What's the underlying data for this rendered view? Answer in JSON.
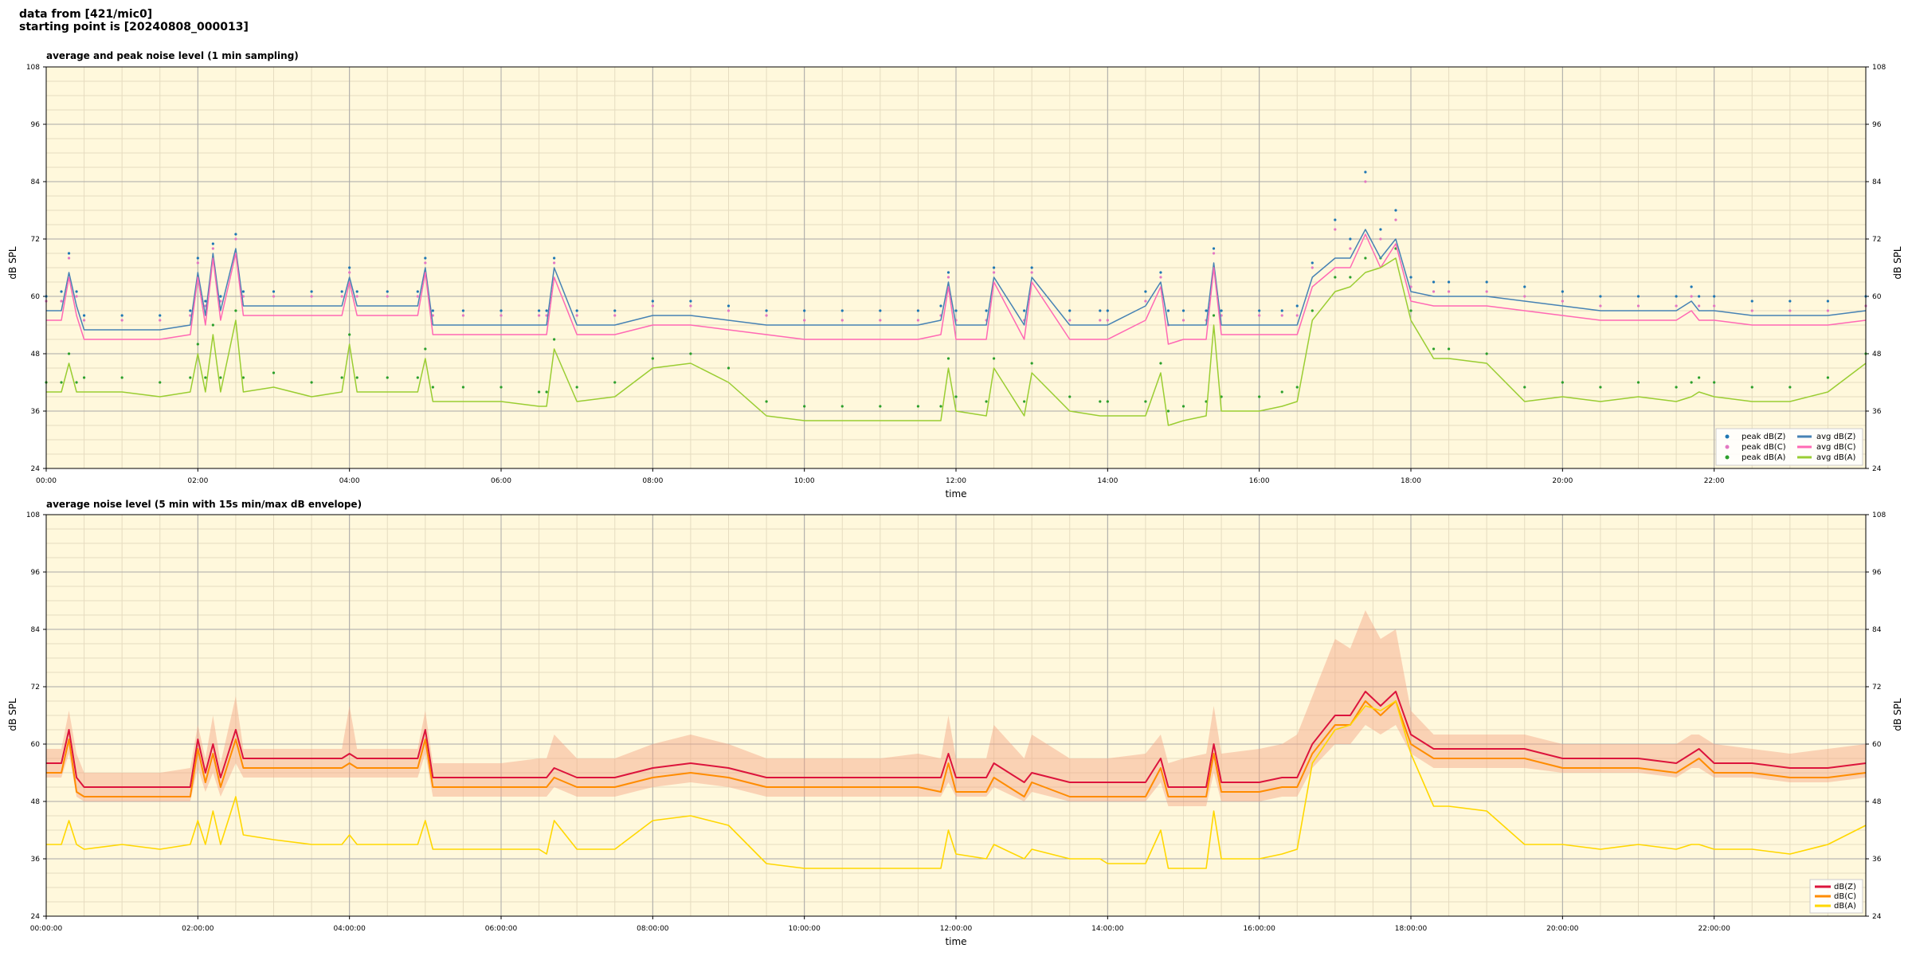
{
  "header": {
    "line1": "data from [421/mic0]",
    "line2": "starting point is [20240808_000013]"
  },
  "colors": {
    "plot_bg": "#fff8dc",
    "grid_major": "#a9a9a9",
    "grid_minor": "#e6dcc0",
    "peak_Z": "#1f77b4",
    "peak_C": "#e377c2",
    "peak_A": "#2ca02c",
    "avg_Z": "#4682b4",
    "avg_C": "#ff69b4",
    "avg_A": "#9acd32",
    "env_Z": "#dc143c",
    "env_C": "#ff8c00",
    "env_A": "#ffd700",
    "envelope_fill": "#f4a582"
  },
  "chart_data": [
    {
      "type": "line",
      "title": "average and peak noise level (1 min sampling)",
      "xlabel": "time",
      "ylabel": "dB SPL",
      "ylabel_right": "dB SPL",
      "ylim": [
        24,
        108
      ],
      "xlim_hours": [
        0,
        24
      ],
      "y_ticks": [
        "24",
        "36",
        "48",
        "60",
        "72",
        "84",
        "96",
        "108"
      ],
      "x_tick_labels": [
        "00:00",
        "02:00",
        "04:00",
        "06:00",
        "08:00",
        "10:00",
        "12:00",
        "14:00",
        "16:00",
        "18:00",
        "20:00",
        "22:00"
      ],
      "grid": true,
      "legend_position": "lower-right",
      "legend": [
        {
          "label": "peak dB(Z)",
          "marker": "dot",
          "color_key": "peak_Z"
        },
        {
          "label": "peak dB(C)",
          "marker": "dot",
          "color_key": "peak_C"
        },
        {
          "label": "peak dB(A)",
          "marker": "dot",
          "color_key": "peak_A"
        },
        {
          "label": "avg dB(Z)",
          "marker": "line",
          "color_key": "avg_Z"
        },
        {
          "label": "avg dB(C)",
          "marker": "line",
          "color_key": "avg_C"
        },
        {
          "label": "avg dB(A)",
          "marker": "line",
          "color_key": "avg_A"
        }
      ],
      "x_hours": [
        0,
        0.2,
        0.3,
        0.4,
        0.5,
        1,
        1.5,
        1.9,
        2.0,
        2.1,
        2.2,
        2.3,
        2.5,
        2.6,
        3,
        3.5,
        3.9,
        4.0,
        4.1,
        4.5,
        4.9,
        5.0,
        5.1,
        5.5,
        6,
        6.5,
        6.6,
        6.7,
        7,
        7.5,
        8,
        8.5,
        9,
        9.5,
        10,
        10.5,
        11,
        11.5,
        11.8,
        11.9,
        12,
        12.4,
        12.5,
        12.9,
        13,
        13.5,
        13.9,
        14,
        14.5,
        14.7,
        14.8,
        15,
        15.3,
        15.4,
        15.5,
        16,
        16.3,
        16.5,
        16.7,
        17,
        17.2,
        17.4,
        17.6,
        17.8,
        18,
        18.3,
        18.5,
        19,
        19.5,
        20,
        20.5,
        21,
        21.5,
        21.7,
        21.8,
        22,
        22.5,
        23,
        23.5,
        24
      ],
      "series": [
        {
          "name": "avg dB(Z)",
          "values": [
            57,
            57,
            65,
            58,
            53,
            53,
            53,
            54,
            65,
            56,
            69,
            57,
            70,
            58,
            58,
            58,
            58,
            64,
            58,
            58,
            58,
            66,
            54,
            54,
            54,
            54,
            54,
            66,
            54,
            54,
            56,
            56,
            55,
            54,
            54,
            54,
            54,
            54,
            55,
            63,
            54,
            54,
            64,
            54,
            64,
            54,
            54,
            54,
            58,
            63,
            54,
            54,
            54,
            67,
            54,
            54,
            54,
            54,
            64,
            68,
            68,
            74,
            68,
            72,
            61,
            60,
            60,
            60,
            59,
            58,
            57,
            57,
            57,
            59,
            57,
            57,
            56,
            56,
            56,
            57
          ]
        },
        {
          "name": "avg dB(C)",
          "values": [
            55,
            55,
            64,
            56,
            51,
            51,
            51,
            52,
            64,
            54,
            68,
            55,
            69,
            56,
            56,
            56,
            56,
            63,
            56,
            56,
            56,
            65,
            52,
            52,
            52,
            52,
            52,
            64,
            52,
            52,
            54,
            54,
            53,
            52,
            51,
            51,
            51,
            51,
            52,
            62,
            51,
            51,
            63,
            51,
            63,
            51,
            51,
            51,
            55,
            62,
            50,
            51,
            51,
            66,
            52,
            52,
            52,
            52,
            62,
            66,
            66,
            73,
            66,
            71,
            59,
            58,
            58,
            58,
            57,
            56,
            55,
            55,
            55,
            57,
            55,
            55,
            54,
            54,
            54,
            55
          ]
        },
        {
          "name": "avg dB(A)",
          "values": [
            40,
            40,
            46,
            40,
            40,
            40,
            39,
            40,
            48,
            40,
            52,
            40,
            55,
            40,
            41,
            39,
            40,
            50,
            40,
            40,
            40,
            47,
            38,
            38,
            38,
            37,
            37,
            49,
            38,
            39,
            45,
            46,
            42,
            35,
            34,
            34,
            34,
            34,
            34,
            45,
            36,
            35,
            45,
            35,
            44,
            36,
            35,
            35,
            35,
            44,
            33,
            34,
            35,
            54,
            36,
            36,
            37,
            38,
            55,
            61,
            62,
            65,
            66,
            68,
            55,
            47,
            47,
            46,
            38,
            39,
            38,
            39,
            38,
            39,
            40,
            39,
            38,
            38,
            40,
            46
          ]
        }
      ],
      "peak_scatter": [
        {
          "name": "peak dB(Z)",
          "values": [
            60,
            61,
            69,
            61,
            56,
            56,
            56,
            57,
            68,
            59,
            71,
            60,
            73,
            61,
            61,
            61,
            61,
            66,
            61,
            61,
            61,
            68,
            57,
            57,
            57,
            57,
            57,
            68,
            57,
            57,
            59,
            59,
            58,
            57,
            57,
            57,
            57,
            57,
            58,
            65,
            57,
            57,
            66,
            57,
            66,
            57,
            57,
            57,
            61,
            65,
            57,
            57,
            57,
            70,
            57,
            57,
            57,
            58,
            67,
            76,
            72,
            86,
            74,
            78,
            64,
            63,
            63,
            63,
            62,
            61,
            60,
            60,
            60,
            62,
            60,
            60,
            59,
            59,
            59,
            60
          ]
        },
        {
          "name": "peak dB(C)",
          "values": [
            59,
            59,
            68,
            60,
            55,
            55,
            55,
            56,
            67,
            58,
            70,
            59,
            72,
            60,
            60,
            60,
            60,
            65,
            60,
            60,
            60,
            67,
            56,
            56,
            56,
            56,
            56,
            67,
            56,
            56,
            58,
            58,
            57,
            56,
            55,
            55,
            55,
            55,
            56,
            64,
            55,
            55,
            65,
            55,
            65,
            55,
            55,
            55,
            59,
            64,
            54,
            55,
            55,
            69,
            56,
            56,
            56,
            56,
            66,
            74,
            70,
            84,
            72,
            76,
            62,
            61,
            61,
            61,
            60,
            59,
            58,
            58,
            58,
            60,
            58,
            58,
            57,
            57,
            57,
            58
          ]
        },
        {
          "name": "peak dB(A)",
          "values": [
            42,
            42,
            48,
            42,
            43,
            43,
            42,
            43,
            50,
            43,
            54,
            43,
            57,
            43,
            44,
            42,
            43,
            52,
            43,
            43,
            43,
            49,
            41,
            41,
            41,
            40,
            40,
            51,
            41,
            42,
            47,
            48,
            45,
            38,
            37,
            37,
            37,
            37,
            37,
            47,
            39,
            38,
            47,
            38,
            46,
            39,
            38,
            38,
            38,
            46,
            36,
            37,
            38,
            56,
            39,
            39,
            40,
            41,
            57,
            64,
            64,
            68,
            68,
            70,
            57,
            49,
            49,
            48,
            41,
            42,
            41,
            42,
            41,
            42,
            43,
            42,
            41,
            41,
            43,
            48
          ]
        }
      ]
    },
    {
      "type": "area",
      "title": "average noise level (5 min with 15s min/max dB envelope)",
      "xlabel": "time",
      "ylabel": "dB SPL",
      "ylabel_right": "dB SPL",
      "ylim": [
        24,
        108
      ],
      "xlim_hours": [
        0,
        24
      ],
      "y_ticks": [
        "24",
        "36",
        "48",
        "60",
        "72",
        "84",
        "96",
        "108"
      ],
      "x_tick_labels": [
        "00:00:00",
        "02:00:00",
        "04:00:00",
        "06:00:00",
        "08:00:00",
        "10:00:00",
        "12:00:00",
        "14:00:00",
        "16:00:00",
        "18:00:00",
        "20:00:00",
        "22:00:00"
      ],
      "grid": true,
      "legend_position": "lower-right",
      "legend": [
        {
          "label": "dB(Z)",
          "marker": "line",
          "color_key": "env_Z"
        },
        {
          "label": "dB(C)",
          "marker": "line",
          "color_key": "env_C"
        },
        {
          "label": "dB(A)",
          "marker": "line",
          "color_key": "env_A"
        }
      ],
      "x_hours": [
        0,
        0.2,
        0.3,
        0.4,
        0.5,
        1,
        1.5,
        1.9,
        2.0,
        2.1,
        2.2,
        2.3,
        2.5,
        2.6,
        3,
        3.5,
        3.9,
        4.0,
        4.1,
        4.5,
        4.9,
        5.0,
        5.1,
        5.5,
        6,
        6.5,
        6.6,
        6.7,
        7,
        7.5,
        8,
        8.5,
        9,
        9.5,
        10,
        10.5,
        11,
        11.5,
        11.8,
        11.9,
        12,
        12.4,
        12.5,
        12.9,
        13,
        13.5,
        13.9,
        14,
        14.5,
        14.7,
        14.8,
        15,
        15.3,
        15.4,
        15.5,
        16,
        16.3,
        16.5,
        16.7,
        17,
        17.2,
        17.4,
        17.6,
        17.8,
        18,
        18.3,
        18.5,
        19,
        19.5,
        20,
        20.5,
        21,
        21.5,
        21.7,
        21.8,
        22,
        22.5,
        23,
        23.5,
        24
      ],
      "series": [
        {
          "name": "dB(Z)",
          "values": [
            56,
            56,
            63,
            53,
            51,
            51,
            51,
            51,
            61,
            54,
            60,
            53,
            63,
            57,
            57,
            57,
            57,
            58,
            57,
            57,
            57,
            63,
            53,
            53,
            53,
            53,
            53,
            55,
            53,
            53,
            55,
            56,
            55,
            53,
            53,
            53,
            53,
            53,
            53,
            58,
            53,
            53,
            56,
            52,
            54,
            52,
            52,
            52,
            52,
            57,
            51,
            51,
            51,
            60,
            52,
            52,
            53,
            53,
            60,
            66,
            66,
            71,
            68,
            71,
            62,
            59,
            59,
            59,
            59,
            57,
            57,
            57,
            56,
            58,
            59,
            56,
            56,
            55,
            55,
            56
          ]
        },
        {
          "name": "dB(C)",
          "values": [
            54,
            54,
            61,
            50,
            49,
            49,
            49,
            49,
            59,
            52,
            58,
            51,
            61,
            55,
            55,
            55,
            55,
            56,
            55,
            55,
            55,
            61,
            51,
            51,
            51,
            51,
            51,
            53,
            51,
            51,
            53,
            54,
            53,
            51,
            51,
            51,
            51,
            51,
            50,
            56,
            50,
            50,
            53,
            49,
            52,
            49,
            49,
            49,
            49,
            55,
            49,
            49,
            49,
            58,
            50,
            50,
            51,
            51,
            58,
            64,
            64,
            69,
            66,
            69,
            60,
            57,
            57,
            57,
            57,
            55,
            55,
            55,
            54,
            56,
            57,
            54,
            54,
            53,
            53,
            54
          ]
        },
        {
          "name": "dB(A)",
          "values": [
            39,
            39,
            44,
            39,
            38,
            39,
            38,
            39,
            44,
            39,
            46,
            39,
            49,
            41,
            40,
            39,
            39,
            41,
            39,
            39,
            39,
            44,
            38,
            38,
            38,
            38,
            37,
            44,
            38,
            38,
            44,
            45,
            43,
            35,
            34,
            34,
            34,
            34,
            34,
            42,
            37,
            36,
            39,
            36,
            38,
            36,
            36,
            35,
            35,
            42,
            34,
            34,
            34,
            46,
            36,
            36,
            37,
            38,
            56,
            63,
            64,
            68,
            67,
            69,
            58,
            47,
            47,
            46,
            39,
            39,
            38,
            39,
            38,
            39,
            39,
            38,
            38,
            37,
            39,
            43
          ]
        }
      ],
      "envelope_max": [
        59,
        59,
        67,
        58,
        54,
        54,
        54,
        55,
        64,
        57,
        66,
        56,
        70,
        59,
        59,
        59,
        59,
        68,
        59,
        59,
        59,
        67,
        56,
        56,
        56,
        57,
        57,
        62,
        57,
        57,
        60,
        62,
        60,
        57,
        57,
        57,
        57,
        58,
        57,
        66,
        57,
        57,
        64,
        57,
        62,
        57,
        57,
        57,
        58,
        62,
        56,
        57,
        58,
        68,
        58,
        59,
        60,
        62,
        70,
        82,
        80,
        88,
        82,
        84,
        67,
        62,
        62,
        62,
        62,
        60,
        60,
        60,
        60,
        62,
        62,
        60,
        59,
        58,
        59,
        60
      ],
      "envelope_min": [
        53,
        53,
        58,
        49,
        48,
        48,
        48,
        48,
        55,
        50,
        54,
        49,
        56,
        53,
        53,
        53,
        53,
        53,
        53,
        53,
        53,
        58,
        49,
        49,
        49,
        49,
        49,
        51,
        49,
        49,
        51,
        52,
        51,
        49,
        49,
        49,
        49,
        49,
        49,
        52,
        49,
        49,
        51,
        48,
        50,
        48,
        48,
        48,
        48,
        52,
        47,
        47,
        47,
        54,
        48,
        48,
        49,
        49,
        55,
        60,
        60,
        64,
        62,
        64,
        58,
        55,
        55,
        55,
        55,
        54,
        54,
        54,
        53,
        55,
        55,
        53,
        53,
        52,
        52,
        53
      ]
    }
  ]
}
